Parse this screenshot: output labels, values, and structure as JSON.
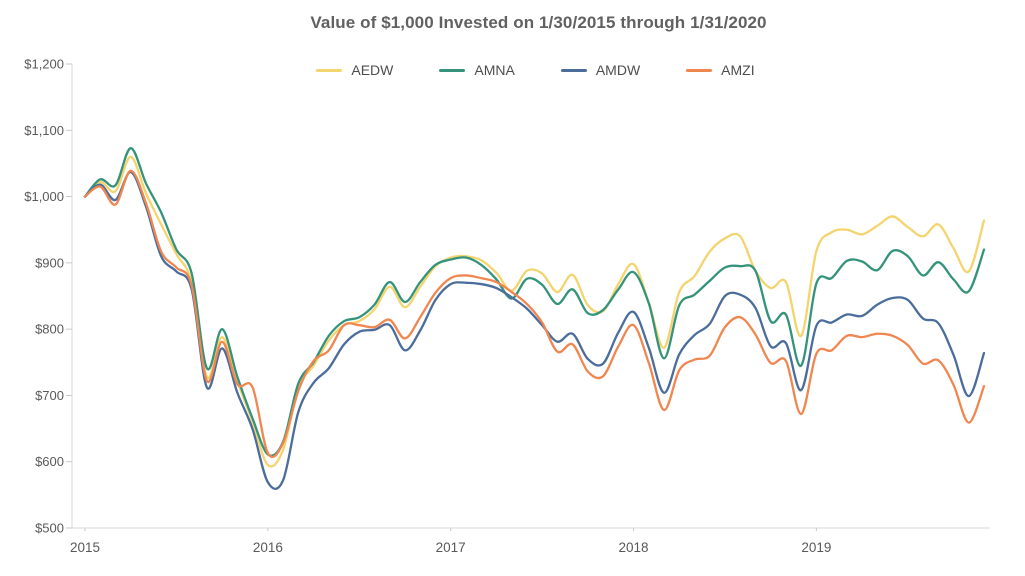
{
  "title": "Value of $1,000 Invested on 1/30/2015 through 1/31/2020",
  "colors": {
    "axis_line": "#d9d9d9",
    "tick_mark": "#c9c9c9",
    "tick_label": "#595959",
    "title_text": "#616161",
    "legend_text": "#4d4d4d",
    "background": "#ffffff"
  },
  "chart_data": {
    "type": "line",
    "title": "Value of $1,000 Invested on 1/30/2015 through 1/31/2020",
    "xlabel": "",
    "ylabel": "",
    "ylim": [
      500,
      1200
    ],
    "grid": false,
    "legend_position": "top-center",
    "y_ticks": [
      1200,
      1100,
      1000,
      900,
      800,
      700,
      600,
      500
    ],
    "y_tick_labels": [
      "$1,200",
      "$1,100",
      "$1,000",
      "$900",
      "$800",
      "$700",
      "$600",
      "$500"
    ],
    "x_tick_labels": [
      "2015",
      "2016",
      "2017",
      "2018",
      "2019"
    ],
    "x": [
      "2015-01",
      "2015-02",
      "2015-03",
      "2015-04",
      "2015-05",
      "2015-06",
      "2015-07",
      "2015-08",
      "2015-09",
      "2015-10",
      "2015-11",
      "2015-12",
      "2016-01",
      "2016-02",
      "2016-03",
      "2016-04",
      "2016-05",
      "2016-06",
      "2016-07",
      "2016-08",
      "2016-09",
      "2016-10",
      "2016-11",
      "2016-12",
      "2017-01",
      "2017-02",
      "2017-03",
      "2017-04",
      "2017-05",
      "2017-06",
      "2017-07",
      "2017-08",
      "2017-09",
      "2017-10",
      "2017-11",
      "2017-12",
      "2018-01",
      "2018-02",
      "2018-03",
      "2018-04",
      "2018-05",
      "2018-06",
      "2018-07",
      "2018-08",
      "2018-09",
      "2018-10",
      "2018-11",
      "2018-12",
      "2019-01",
      "2019-02",
      "2019-03",
      "2019-04",
      "2019-05",
      "2019-06",
      "2019-07",
      "2019-08",
      "2019-09",
      "2019-10",
      "2019-11",
      "2019-12"
    ],
    "series": [
      {
        "name": "AEDW",
        "color": "#f3d46e",
        "values": [
          1000,
          1022,
          1008,
          1060,
          1005,
          958,
          913,
          870,
          728,
          788,
          721,
          660,
          595,
          618,
          712,
          745,
          783,
          806,
          812,
          830,
          864,
          833,
          864,
          895,
          908,
          910,
          904,
          885,
          858,
          888,
          884,
          856,
          882,
          836,
          827,
          868,
          898,
          840,
          772,
          856,
          880,
          917,
          937,
          940,
          888,
          862,
          871,
          790,
          918,
          946,
          950,
          943,
          956,
          970,
          954,
          940,
          958,
          922,
          887,
          964
        ]
      },
      {
        "name": "AMNA",
        "color": "#35937c",
        "values": [
          1000,
          1026,
          1017,
          1073,
          1020,
          976,
          920,
          884,
          741,
          800,
          728,
          665,
          611,
          630,
          718,
          750,
          790,
          812,
          818,
          837,
          871,
          841,
          871,
          897,
          905,
          908,
          897,
          875,
          846,
          876,
          867,
          838,
          860,
          824,
          829,
          860,
          886,
          839,
          756,
          836,
          852,
          873,
          893,
          895,
          888,
          812,
          822,
          745,
          869,
          877,
          903,
          902,
          889,
          918,
          910,
          881,
          901,
          875,
          857,
          920
        ]
      },
      {
        "name": "AMDW",
        "color": "#4a6d9c",
        "values": [
          1000,
          1018,
          995,
          1037,
          985,
          910,
          887,
          860,
          712,
          771,
          704,
          649,
          569,
          572,
          675,
          719,
          741,
          777,
          796,
          799,
          806,
          768,
          798,
          844,
          868,
          870,
          868,
          862,
          848,
          831,
          806,
          781,
          793,
          755,
          748,
          795,
          826,
          772,
          704,
          762,
          791,
          808,
          850,
          852,
          832,
          774,
          779,
          708,
          805,
          810,
          822,
          820,
          837,
          847,
          844,
          816,
          809,
          761,
          699,
          764
        ]
      },
      {
        "name": "AMZI",
        "color": "#f08650",
        "values": [
          1000,
          1015,
          988,
          1039,
          990,
          917,
          893,
          866,
          722,
          781,
          717,
          712,
          613,
          628,
          707,
          752,
          768,
          806,
          806,
          803,
          814,
          786,
          818,
          855,
          877,
          881,
          877,
          871,
          856,
          838,
          810,
          766,
          777,
          736,
          729,
          774,
          806,
          749,
          678,
          738,
          754,
          760,
          803,
          818,
          792,
          749,
          752,
          672,
          763,
          768,
          790,
          788,
          793,
          790,
          776,
          748,
          753,
          716,
          659,
          714
        ]
      }
    ]
  }
}
